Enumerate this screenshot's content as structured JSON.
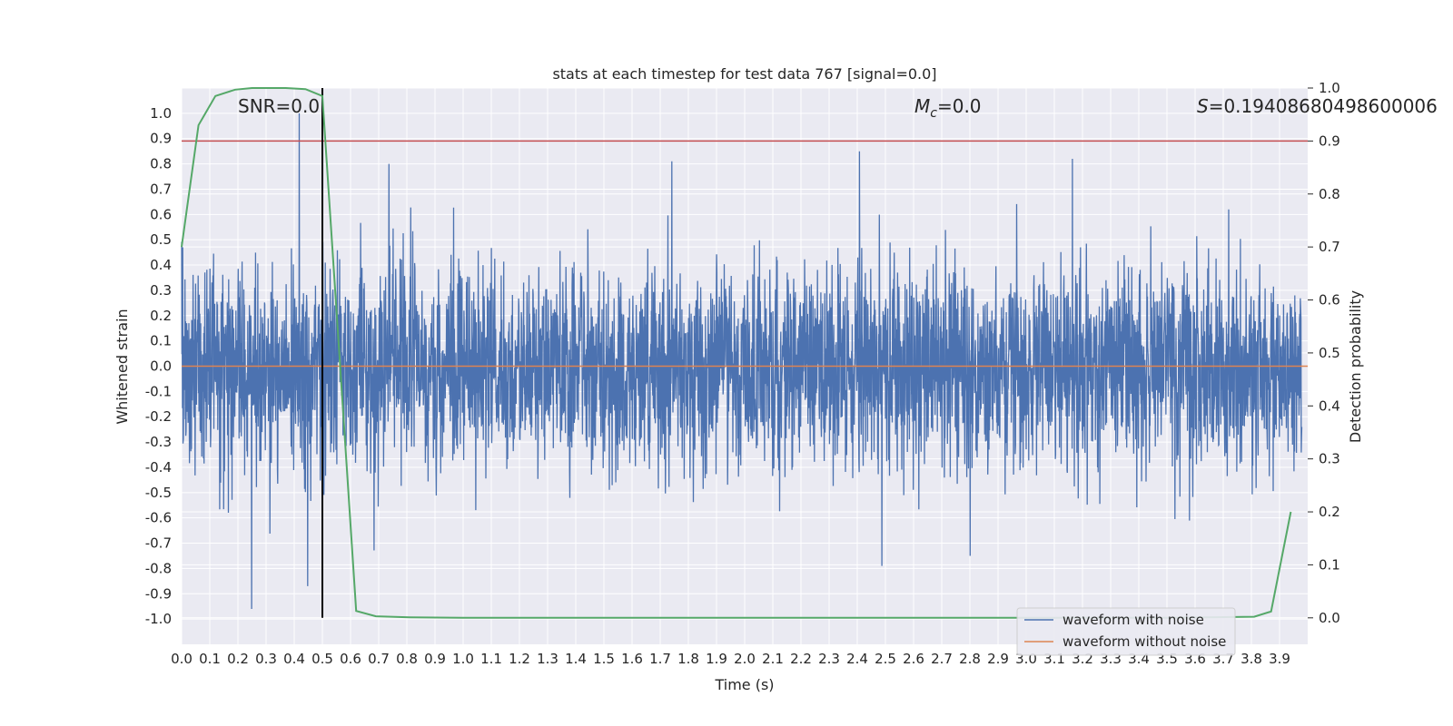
{
  "chart_data": {
    "type": "line",
    "title": "stats at each timestep for test data 767 [signal=0.0]",
    "xlabel": "Time (s)",
    "ylabel": "Whitened strain",
    "ylabel_right": "Detection probability",
    "xlim": [
      0.0,
      4.0
    ],
    "ylim": [
      -1.1,
      1.1
    ],
    "ylim_right": [
      -0.05,
      1.0
    ],
    "x_ticks": [
      "0.0",
      "0.1",
      "0.2",
      "0.3",
      "0.4",
      "0.5",
      "0.6",
      "0.7",
      "0.8",
      "0.9",
      "1.0",
      "1.1",
      "1.2",
      "1.3",
      "1.4",
      "1.5",
      "1.6",
      "1.7",
      "1.8",
      "1.9",
      "2.0",
      "2.1",
      "2.2",
      "2.3",
      "2.4",
      "2.5",
      "2.6",
      "2.7",
      "2.8",
      "2.9",
      "3.0",
      "3.1",
      "3.2",
      "3.3",
      "3.4",
      "3.5",
      "3.6",
      "3.7",
      "3.8",
      "3.9"
    ],
    "y_ticks": [
      "1.0",
      "0.9",
      "0.8",
      "0.7",
      "0.6",
      "0.5",
      "0.4",
      "0.3",
      "0.2",
      "0.1",
      "0.0",
      "-0.1",
      "-0.2",
      "-0.3",
      "-0.4",
      "-0.5",
      "-0.6",
      "-0.7",
      "-0.8",
      "-0.9",
      "-1.0"
    ],
    "y_ticks_right": [
      "1.0",
      "0.9",
      "0.8",
      "0.7",
      "0.6",
      "0.5",
      "0.4",
      "0.3",
      "0.2",
      "0.1",
      "0.0"
    ],
    "threshold_right": 0.9,
    "vline_x": 0.5,
    "annotations": {
      "snr": "SNR=0.0",
      "mc_symbol": "M",
      "mc_sub": "c",
      "mc_value": "=0.0",
      "s_symbol": "S",
      "s_value": "=0.19408680498600006"
    },
    "legend": [
      "waveform with noise",
      "waveform without noise"
    ],
    "series": [
      {
        "name": "waveform with noise",
        "color": "#4c72b0",
        "samples": 4000,
        "amplitude_peak_max": 1.0,
        "amplitude_trough_min": -0.96
      },
      {
        "name": "waveform without noise",
        "color": "#dd8452",
        "value": 0.0
      },
      {
        "name": "detection probability",
        "color": "#55a868",
        "axis": "right",
        "x": [
          0.0,
          0.06,
          0.12,
          0.19,
          0.25,
          0.31,
          0.37,
          0.44,
          0.5,
          0.56,
          0.62,
          0.69,
          0.81,
          1.0,
          1.5,
          2.0,
          2.5,
          3.0,
          3.5,
          3.81,
          3.87,
          3.94
        ],
        "values": [
          0.7,
          0.93,
          0.985,
          0.997,
          1.0,
          1.0,
          1.0,
          0.998,
          0.985,
          0.5,
          0.013,
          0.003,
          0.001,
          0.0,
          0.0,
          0.0,
          0.0,
          0.0,
          0.0,
          0.002,
          0.012,
          0.2
        ]
      }
    ],
    "colors": {
      "panel": "#eaeaf2",
      "grid": "#ffffff",
      "threshold": "#c44e52",
      "vline": "#000000"
    }
  }
}
